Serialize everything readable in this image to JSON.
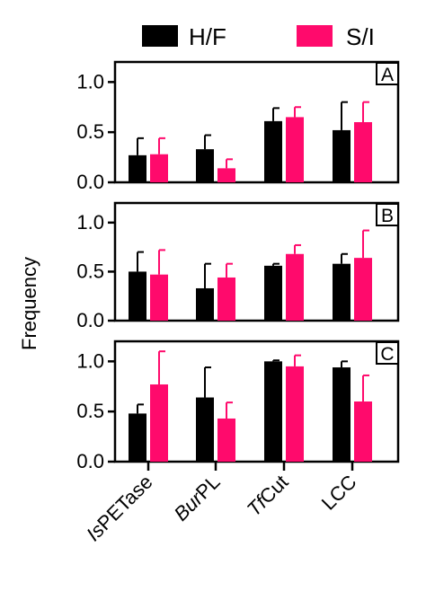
{
  "colors": {
    "series_1": "#000000",
    "series_2": "#ff0a6c",
    "axis": "#000000",
    "background": "#ffffff"
  },
  "legend": {
    "placement": "top",
    "items": [
      "H/F",
      "S/I"
    ]
  },
  "shared_ylabel": "Frequency",
  "chart_data": [
    {
      "type": "bar",
      "panel_label": "A",
      "categories": [
        "IsPETase",
        "BurPL",
        "TfCut",
        "LCC"
      ],
      "category_italic_parts": [
        "Is",
        "Bur",
        "Tf",
        ""
      ],
      "category_plain_parts": [
        "PETase",
        "PL",
        "Cut",
        "LCC"
      ],
      "series": [
        {
          "name": "H/F",
          "values": [
            0.27,
            0.33,
            0.61,
            0.52
          ],
          "errors": [
            0.17,
            0.14,
            0.13,
            0.28
          ]
        },
        {
          "name": "S/I",
          "values": [
            0.28,
            0.14,
            0.65,
            0.6
          ],
          "errors": [
            0.16,
            0.09,
            0.1,
            0.2
          ]
        }
      ],
      "xlabel": "",
      "ylabel": "Frequency",
      "ylim": [
        0,
        1.2
      ],
      "yticks": [
        0.0,
        0.5,
        1.0
      ],
      "ytick_labels": [
        "0.0",
        "0.5",
        "1.0"
      ],
      "grid": false
    },
    {
      "type": "bar",
      "panel_label": "B",
      "categories": [
        "IsPETase",
        "BurPL",
        "TfCut",
        "LCC"
      ],
      "series": [
        {
          "name": "H/F",
          "values": [
            0.5,
            0.33,
            0.56,
            0.58
          ],
          "errors": [
            0.2,
            0.25,
            0.02,
            0.1
          ]
        },
        {
          "name": "S/I",
          "values": [
            0.47,
            0.44,
            0.68,
            0.64
          ],
          "errors": [
            0.25,
            0.14,
            0.09,
            0.28
          ]
        }
      ],
      "xlabel": "",
      "ylabel": "Frequency",
      "ylim": [
        0,
        1.2
      ],
      "yticks": [
        0.0,
        0.5,
        1.0
      ],
      "ytick_labels": [
        "0.0",
        "0.5",
        "1.0"
      ],
      "grid": false
    },
    {
      "type": "bar",
      "panel_label": "C",
      "categories": [
        "IsPETase",
        "BurPL",
        "TfCut",
        "LCC"
      ],
      "series": [
        {
          "name": "H/F",
          "values": [
            0.48,
            0.64,
            1.0,
            0.94
          ],
          "errors": [
            0.09,
            0.3,
            0.01,
            0.06
          ]
        },
        {
          "name": "S/I",
          "values": [
            0.77,
            0.43,
            0.95,
            0.6
          ],
          "errors": [
            0.33,
            0.16,
            0.11,
            0.26
          ]
        }
      ],
      "xlabel": "",
      "ylabel": "Frequency",
      "ylim": [
        0,
        1.2
      ],
      "yticks": [
        0.0,
        0.5,
        1.0
      ],
      "ytick_labels": [
        "0.0",
        "0.5",
        "1.0"
      ],
      "grid": false
    }
  ]
}
